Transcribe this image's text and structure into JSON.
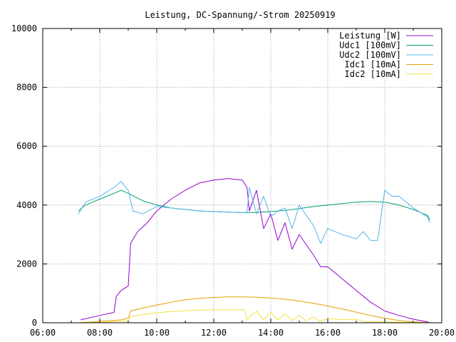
{
  "chart_data": {
    "type": "line",
    "title": "Leistung, DC-Spannung/-Strom 20250919",
    "xlabel": "",
    "ylabel": "",
    "xlim": [
      "06:00",
      "20:00"
    ],
    "ylim": [
      0,
      10000
    ],
    "x_ticks": [
      "06:00",
      "08:00",
      "10:00",
      "12:00",
      "14:00",
      "16:00",
      "18:00",
      "20:00"
    ],
    "y_ticks": [
      "0",
      "2000",
      "4000",
      "6000",
      "8000",
      "10000"
    ],
    "grid": true,
    "legend_position": "top-right",
    "series": [
      {
        "name": "Leistung [W]",
        "color": "#9400d3",
        "x": [
          "07:20",
          "08:00",
          "08:30",
          "08:35",
          "08:45",
          "09:00",
          "09:05",
          "09:20",
          "09:40",
          "10:00",
          "10:30",
          "11:00",
          "11:30",
          "12:00",
          "12:30",
          "13:00",
          "13:10",
          "13:15",
          "13:30",
          "13:45",
          "14:00",
          "14:15",
          "14:30",
          "14:45",
          "15:00",
          "15:30",
          "15:45",
          "16:00",
          "16:30",
          "17:00",
          "17:30",
          "18:00",
          "18:30",
          "19:00",
          "19:30",
          "19:35"
        ],
        "y": [
          100,
          250,
          350,
          900,
          1100,
          1250,
          2700,
          3100,
          3400,
          3800,
          4200,
          4500,
          4750,
          4850,
          4900,
          4850,
          4600,
          3800,
          4500,
          3200,
          3700,
          2800,
          3400,
          2500,
          3000,
          2300,
          1900,
          1900,
          1500,
          1100,
          700,
          400,
          250,
          120,
          30,
          0
        ]
      },
      {
        "name": "Udc1 [100mV]",
        "color": "#009e73",
        "x": [
          "07:15",
          "07:30",
          "08:00",
          "08:30",
          "08:45",
          "09:00",
          "09:30",
          "10:00",
          "10:30",
          "11:00",
          "11:30",
          "12:00",
          "12:30",
          "13:00",
          "13:30",
          "14:00",
          "14:30",
          "15:00",
          "15:30",
          "16:00",
          "16:30",
          "17:00",
          "17:30",
          "18:00",
          "18:30",
          "19:00",
          "19:30",
          "19:35"
        ],
        "y": [
          3800,
          4000,
          4200,
          4400,
          4500,
          4400,
          4150,
          4000,
          3900,
          3850,
          3800,
          3780,
          3760,
          3740,
          3750,
          3780,
          3820,
          3880,
          3950,
          4000,
          4050,
          4100,
          4120,
          4100,
          4000,
          3850,
          3650,
          3500
        ]
      },
      {
        "name": "Udc2 [100mV]",
        "color": "#56b4e9",
        "x": [
          "07:15",
          "07:30",
          "08:00",
          "08:30",
          "08:45",
          "09:00",
          "09:10",
          "09:30",
          "10:00",
          "10:30",
          "11:00",
          "11:30",
          "12:00",
          "12:30",
          "13:00",
          "13:10",
          "13:15",
          "13:30",
          "13:45",
          "14:00",
          "14:15",
          "14:30",
          "14:45",
          "15:00",
          "15:30",
          "15:45",
          "16:00",
          "16:30",
          "17:00",
          "17:15",
          "17:30",
          "17:45",
          "18:00",
          "18:15",
          "18:30",
          "19:00",
          "19:30",
          "19:35"
        ],
        "y": [
          3700,
          4100,
          4300,
          4600,
          4800,
          4500,
          3800,
          3700,
          3950,
          3900,
          3850,
          3800,
          3780,
          3760,
          3740,
          3750,
          4600,
          3700,
          4300,
          3600,
          3800,
          3900,
          3200,
          4000,
          3300,
          2700,
          3200,
          3000,
          2850,
          3100,
          2800,
          2800,
          4500,
          4300,
          4300,
          3900,
          3600,
          3400
        ]
      },
      {
        "name": "Idc1 [10mA]",
        "color": "#e69f00",
        "x": [
          "07:20",
          "07:45",
          "08:00",
          "08:30",
          "08:45",
          "09:00",
          "09:05",
          "09:30",
          "10:00",
          "10:30",
          "11:00",
          "11:30",
          "12:00",
          "12:30",
          "13:00",
          "13:30",
          "14:00",
          "14:30",
          "15:00",
          "15:30",
          "16:00",
          "16:30",
          "17:00",
          "17:30",
          "18:00",
          "18:30",
          "19:00",
          "19:30",
          "19:35"
        ],
        "y": [
          10,
          30,
          50,
          80,
          100,
          150,
          400,
          500,
          600,
          700,
          780,
          830,
          860,
          880,
          880,
          870,
          840,
          800,
          740,
          660,
          570,
          470,
          360,
          250,
          150,
          80,
          30,
          10,
          0
        ]
      },
      {
        "name": "Idc2 [10mA]",
        "color": "#f0e442",
        "x": [
          "07:20",
          "08:00",
          "08:30",
          "08:45",
          "09:00",
          "09:05",
          "09:30",
          "10:00",
          "10:30",
          "11:00",
          "11:30",
          "12:00",
          "12:30",
          "13:00",
          "13:05",
          "13:10",
          "13:30",
          "13:45",
          "14:00",
          "14:15",
          "14:30",
          "14:45",
          "15:00",
          "15:15",
          "15:30",
          "15:45",
          "16:00",
          "16:30",
          "17:00",
          "17:15",
          "17:30",
          "18:00",
          "18:30",
          "19:00",
          "19:35"
        ],
        "y": [
          0,
          20,
          40,
          50,
          60,
          200,
          280,
          340,
          380,
          410,
          430,
          440,
          440,
          440,
          440,
          100,
          400,
          100,
          350,
          100,
          300,
          80,
          250,
          60,
          200,
          50,
          150,
          100,
          120,
          40,
          30,
          30,
          20,
          10,
          0
        ]
      }
    ]
  }
}
